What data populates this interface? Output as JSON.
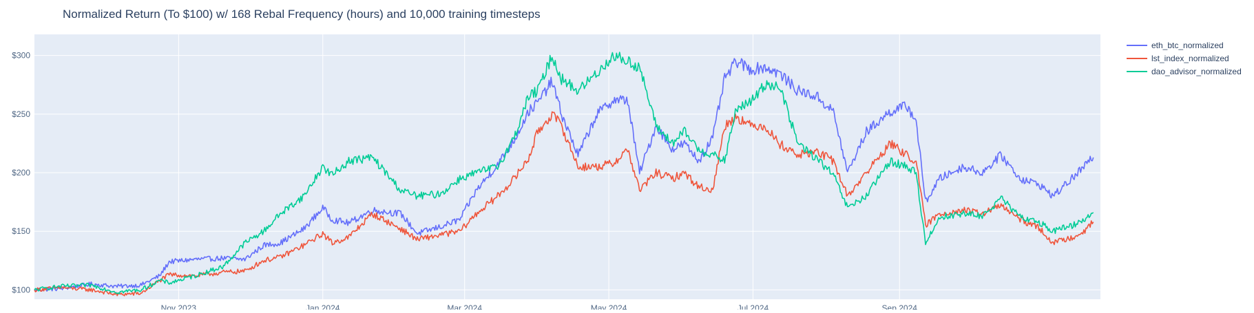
{
  "colors": {
    "background": "#ffffff",
    "plot_background": "#e5ecf6",
    "grid": "#ffffff",
    "text": "#2a3f5f",
    "axis_text": "#506784"
  },
  "chart_data": {
    "type": "line",
    "title": "Normalized Return (To $100) w/ 168 Rebal Frequency (hours) and 10,000 training timesteps",
    "xlabel": "",
    "ylabel": "",
    "xlim": [
      "2023-09-01",
      "2024-09-20"
    ],
    "ylim": [
      92,
      318
    ],
    "x_ticks": [
      {
        "date": "2023-11-01",
        "label": "Nov 2023"
      },
      {
        "date": "2024-01-01",
        "label": "Jan 2024"
      },
      {
        "date": "2024-03-01",
        "label": "Mar 2024"
      },
      {
        "date": "2024-05-01",
        "label": "May 2024"
      },
      {
        "date": "2024-07-01",
        "label": "Jul 2024"
      },
      {
        "date": "2024-09-01",
        "label": "Sep 2024"
      }
    ],
    "y_ticks": [
      {
        "value": 100,
        "label": "$100"
      },
      {
        "value": 150,
        "label": "$150"
      },
      {
        "value": 200,
        "label": "$200"
      },
      {
        "value": 250,
        "label": "$250"
      },
      {
        "value": 300,
        "label": "$300"
      }
    ],
    "grid": true,
    "legend_position": "top-right, outside plot",
    "series": [
      {
        "name": "eth_btc_normalized",
        "color": "#636efa",
        "points": [
          [
            "2023-09-01",
            100
          ],
          [
            "2023-09-12",
            101
          ],
          [
            "2023-09-25",
            105
          ],
          [
            "2023-10-06",
            103
          ],
          [
            "2023-10-16",
            104
          ],
          [
            "2023-10-24",
            112
          ],
          [
            "2023-10-28",
            124
          ],
          [
            "2023-11-08",
            126
          ],
          [
            "2023-11-20",
            127
          ],
          [
            "2023-11-29",
            126
          ],
          [
            "2023-12-07",
            138
          ],
          [
            "2023-12-14",
            140
          ],
          [
            "2023-12-24",
            152
          ],
          [
            "2024-01-01",
            170
          ],
          [
            "2024-01-05",
            160
          ],
          [
            "2024-01-12",
            157
          ],
          [
            "2024-01-22",
            168
          ],
          [
            "2024-02-03",
            165
          ],
          [
            "2024-02-10",
            148
          ],
          [
            "2024-02-20",
            154
          ],
          [
            "2024-02-28",
            160
          ],
          [
            "2024-03-06",
            185
          ],
          [
            "2024-03-15",
            207
          ],
          [
            "2024-03-22",
            228
          ],
          [
            "2024-03-28",
            252
          ],
          [
            "2024-04-01",
            260
          ],
          [
            "2024-04-07",
            278
          ],
          [
            "2024-04-11",
            250
          ],
          [
            "2024-04-18",
            215
          ],
          [
            "2024-04-26",
            250
          ],
          [
            "2024-05-03",
            262
          ],
          [
            "2024-05-09",
            262
          ],
          [
            "2024-05-14",
            200
          ],
          [
            "2024-05-21",
            240
          ],
          [
            "2024-05-28",
            220
          ],
          [
            "2024-06-02",
            225
          ],
          [
            "2024-06-08",
            210
          ],
          [
            "2024-06-14",
            230
          ],
          [
            "2024-06-19",
            280
          ],
          [
            "2024-06-24",
            295
          ],
          [
            "2024-06-30",
            288
          ],
          [
            "2024-07-06",
            290
          ],
          [
            "2024-07-12",
            285
          ],
          [
            "2024-07-20",
            270
          ],
          [
            "2024-07-28",
            265
          ],
          [
            "2024-08-04",
            252
          ],
          [
            "2024-08-10",
            200
          ],
          [
            "2024-08-18",
            235
          ],
          [
            "2024-08-28",
            252
          ],
          [
            "2024-09-04",
            257
          ],
          [
            "2024-09-08",
            245
          ],
          [
            "2024-09-12",
            175
          ]
        ]
      },
      {
        "name": "lst_index_normalized",
        "color": "#ef553b",
        "points": [
          [
            "2023-09-01",
            100
          ],
          [
            "2023-09-12",
            102
          ],
          [
            "2023-09-25",
            100
          ],
          [
            "2023-10-06",
            96
          ],
          [
            "2023-10-16",
            97
          ],
          [
            "2023-10-24",
            108
          ],
          [
            "2023-10-28",
            113
          ],
          [
            "2023-11-08",
            112
          ],
          [
            "2023-11-20",
            115
          ],
          [
            "2023-11-29",
            116
          ],
          [
            "2023-12-07",
            125
          ],
          [
            "2023-12-14",
            128
          ],
          [
            "2023-12-24",
            138
          ],
          [
            "2024-01-01",
            148
          ],
          [
            "2024-01-05",
            140
          ],
          [
            "2024-01-12",
            145
          ],
          [
            "2024-01-22",
            165
          ],
          [
            "2024-02-03",
            152
          ],
          [
            "2024-02-10",
            143
          ],
          [
            "2024-02-20",
            147
          ],
          [
            "2024-02-28",
            150
          ],
          [
            "2024-03-06",
            165
          ],
          [
            "2024-03-15",
            180
          ],
          [
            "2024-03-22",
            195
          ],
          [
            "2024-03-28",
            212
          ],
          [
            "2024-04-01",
            235
          ],
          [
            "2024-04-07",
            250
          ],
          [
            "2024-04-11",
            240
          ],
          [
            "2024-04-18",
            205
          ],
          [
            "2024-04-26",
            205
          ],
          [
            "2024-05-03",
            208
          ],
          [
            "2024-05-09",
            220
          ],
          [
            "2024-05-14",
            185
          ],
          [
            "2024-05-21",
            200
          ],
          [
            "2024-05-28",
            195
          ],
          [
            "2024-06-02",
            200
          ],
          [
            "2024-06-08",
            188
          ],
          [
            "2024-06-14",
            185
          ],
          [
            "2024-06-19",
            240
          ],
          [
            "2024-06-24",
            248
          ],
          [
            "2024-06-30",
            240
          ],
          [
            "2024-07-06",
            240
          ],
          [
            "2024-07-12",
            225
          ],
          [
            "2024-07-20",
            215
          ],
          [
            "2024-07-28",
            218
          ],
          [
            "2024-08-04",
            210
          ],
          [
            "2024-08-10",
            180
          ],
          [
            "2024-08-18",
            200
          ],
          [
            "2024-08-28",
            225
          ],
          [
            "2024-09-04",
            215
          ],
          [
            "2024-09-08",
            210
          ],
          [
            "2024-09-12",
            155
          ]
        ]
      },
      {
        "name": "dao_advisor_normalized",
        "color": "#00cc96",
        "points": [
          [
            "2023-09-01",
            100
          ],
          [
            "2023-09-12",
            103
          ],
          [
            "2023-09-25",
            104
          ],
          [
            "2023-10-06",
            98
          ],
          [
            "2023-10-16",
            100
          ],
          [
            "2023-10-24",
            108
          ],
          [
            "2023-10-28",
            106
          ],
          [
            "2023-11-08",
            112
          ],
          [
            "2023-11-20",
            120
          ],
          [
            "2023-11-29",
            140
          ],
          [
            "2023-12-07",
            150
          ],
          [
            "2023-12-14",
            165
          ],
          [
            "2023-12-24",
            180
          ],
          [
            "2024-01-01",
            205
          ],
          [
            "2024-01-05",
            198
          ],
          [
            "2024-01-12",
            210
          ],
          [
            "2024-01-22",
            213
          ],
          [
            "2024-02-03",
            185
          ],
          [
            "2024-02-10",
            180
          ],
          [
            "2024-02-20",
            182
          ],
          [
            "2024-02-28",
            195
          ],
          [
            "2024-03-06",
            200
          ],
          [
            "2024-03-15",
            205
          ],
          [
            "2024-03-22",
            230
          ],
          [
            "2024-03-28",
            265
          ],
          [
            "2024-04-01",
            270
          ],
          [
            "2024-04-07",
            300
          ],
          [
            "2024-04-11",
            280
          ],
          [
            "2024-04-18",
            270
          ],
          [
            "2024-04-26",
            285
          ],
          [
            "2024-05-03",
            300
          ],
          [
            "2024-05-09",
            295
          ],
          [
            "2024-05-14",
            290
          ],
          [
            "2024-05-21",
            240
          ],
          [
            "2024-05-28",
            225
          ],
          [
            "2024-06-02",
            235
          ],
          [
            "2024-06-08",
            220
          ],
          [
            "2024-06-14",
            215
          ],
          [
            "2024-06-19",
            210
          ],
          [
            "2024-06-24",
            255
          ],
          [
            "2024-06-30",
            260
          ],
          [
            "2024-07-06",
            275
          ],
          [
            "2024-07-12",
            275
          ],
          [
            "2024-07-20",
            225
          ],
          [
            "2024-07-28",
            212
          ],
          [
            "2024-08-04",
            198
          ],
          [
            "2024-08-10",
            170
          ],
          [
            "2024-08-18",
            180
          ],
          [
            "2024-08-28",
            210
          ],
          [
            "2024-09-04",
            205
          ],
          [
            "2024-09-08",
            200
          ],
          [
            "2024-09-12",
            140
          ]
        ]
      }
    ]
  }
}
